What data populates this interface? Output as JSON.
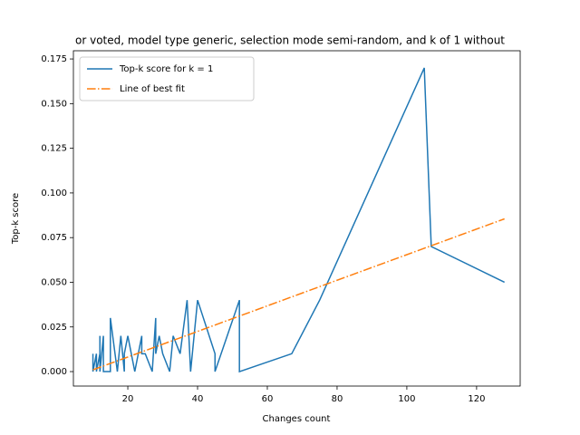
{
  "chart_data": {
    "type": "line",
    "title": "or voted, model type generic, selection mode semi-random, and k of 1 without",
    "x_label": "Changes count",
    "y_label": "Top-k score",
    "xlim": [
      4.4,
      132.5
    ],
    "ylim": [
      -0.0081,
      0.1796
    ],
    "xticks": [
      20,
      40,
      60,
      80,
      100,
      120
    ],
    "yticks": [
      {
        "value": 0,
        "label": "0.000"
      },
      {
        "value": 0.025,
        "label": "0.025"
      },
      {
        "value": 0.05,
        "label": "0.050"
      },
      {
        "value": 0.075,
        "label": "0.075"
      },
      {
        "value": 0.1,
        "label": "0.100"
      },
      {
        "value": 0.125,
        "label": "0.125"
      },
      {
        "value": 0.15,
        "label": "0.150"
      },
      {
        "value": 0.175,
        "label": "0.175"
      }
    ],
    "legend": "upper left",
    "series": [
      {
        "name": "Top-k score for k = 1",
        "color": "#1f77b4",
        "linestyle": "solid",
        "x": [
          10,
          10,
          11,
          11,
          12,
          12,
          12,
          13,
          13,
          15,
          15,
          17,
          18,
          19,
          19,
          20,
          21,
          22,
          24,
          24,
          25,
          27,
          28,
          28,
          29,
          30,
          32,
          33,
          35,
          37,
          38,
          40,
          45,
          45,
          52,
          52,
          67,
          75,
          105,
          107,
          128
        ],
        "values": [
          0.01,
          0,
          0.01,
          0,
          0.01,
          0.02,
          0,
          0.02,
          0,
          0,
          0.03,
          0,
          0.02,
          0,
          0.01,
          0.02,
          0.01,
          0,
          0.02,
          0.01,
          0.01,
          0,
          0.03,
          0.01,
          0.02,
          0.01,
          0,
          0.02,
          0.01,
          0.04,
          0,
          0.04,
          0.01,
          0,
          0.04,
          0,
          0.01,
          0.04,
          0.17,
          0.07,
          0.05
        ]
      },
      {
        "name": "Line of best fit",
        "color": "#ff7f0e",
        "linestyle": "dashdot",
        "x": [
          10,
          128
        ],
        "values": [
          0.001,
          0.0855
        ]
      }
    ]
  }
}
